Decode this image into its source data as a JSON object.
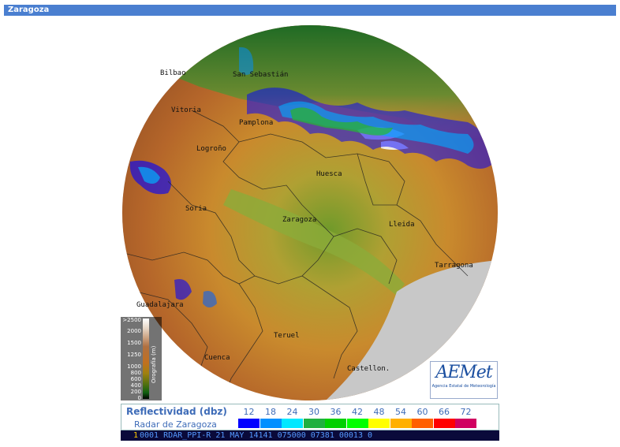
{
  "page": {
    "title": "Zaragoza"
  },
  "map": {
    "copyright": "Agencia Estatal de Meteorología",
    "cities": [
      "Bilbao",
      "San Sebastián",
      "Vitoria",
      "Pamplona",
      "Logroño",
      "Huesca",
      "Soria",
      "Zaragoza",
      "Lleida",
      "Tarragona",
      "Guadalajara",
      "Teruel",
      "Cuenca",
      "Castellon."
    ],
    "orography": {
      "label": "Orografía (m)",
      "ticks": [
        ">2500",
        "2000",
        "1500",
        "1250",
        "1000",
        "800",
        "600",
        "400",
        "200",
        "0"
      ]
    },
    "logo": {
      "mark": "AEMet",
      "subtitle": "Agencia Estatal de Meteorología"
    }
  },
  "legend": {
    "title": "Reflectividad (dbz)",
    "subtitle": "Radar de Zaragoza",
    "scale": [
      {
        "value": "12",
        "color": "#0000ff"
      },
      {
        "value": "18",
        "color": "#0090ff"
      },
      {
        "value": "24",
        "color": "#00e8ff"
      },
      {
        "value": "30",
        "color": "#20b040"
      },
      {
        "value": "36",
        "color": "#00d000"
      },
      {
        "value": "42",
        "color": "#00ff00"
      },
      {
        "value": "48",
        "color": "#ffff00"
      },
      {
        "value": "54",
        "color": "#ffb000"
      },
      {
        "value": "60",
        "color": "#ff6000"
      },
      {
        "value": "66",
        "color": "#ff0000"
      },
      {
        "value": "72",
        "color": "#d00060"
      }
    ]
  },
  "status": {
    "prefix": "1",
    "text": "0001 RDAR_PPI-R   21 MAY 14141 075000 07381 00013 0"
  }
}
